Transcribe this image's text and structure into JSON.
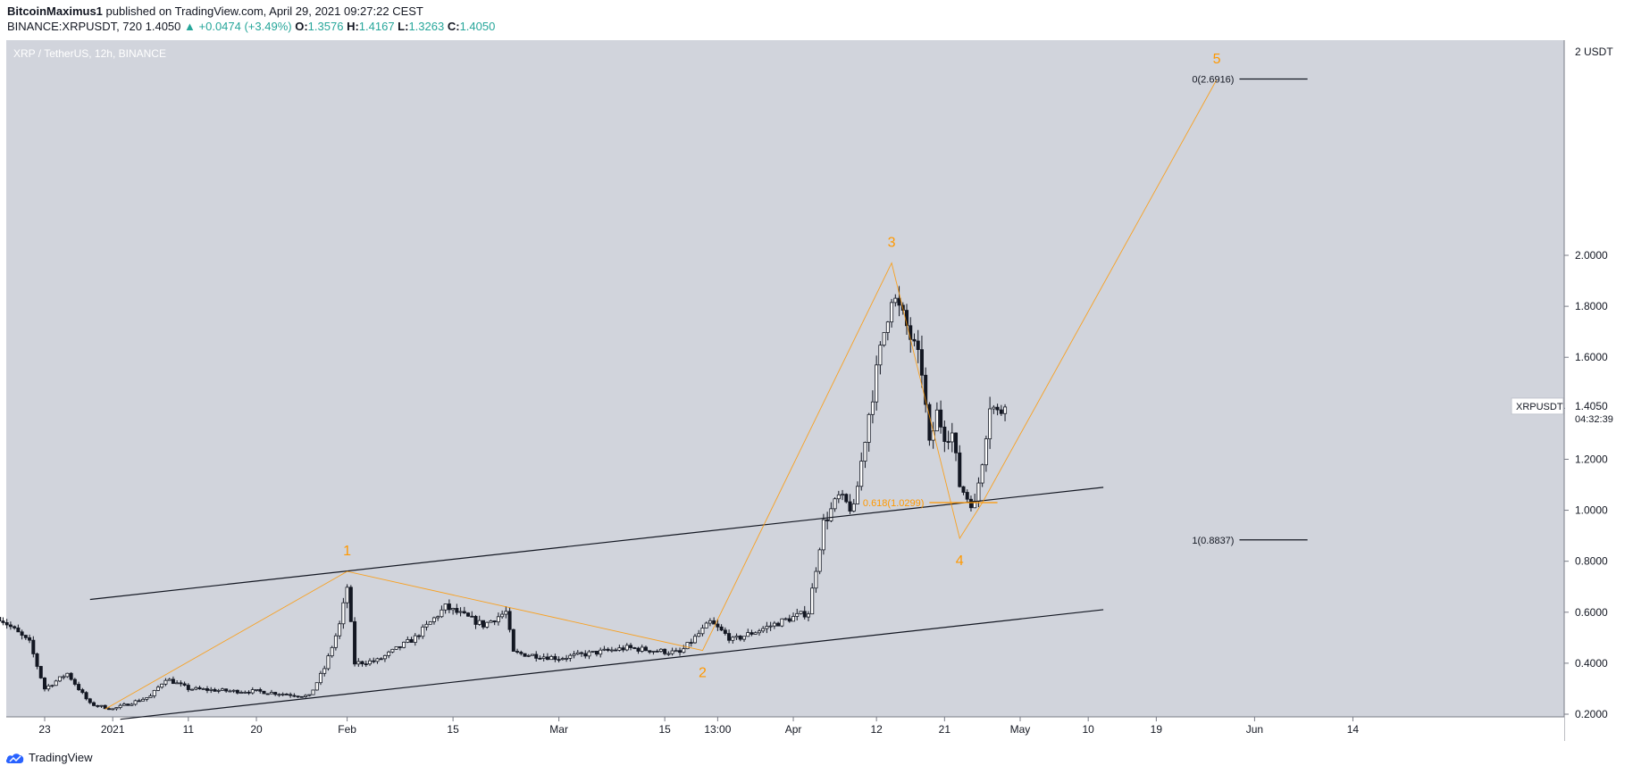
{
  "header": {
    "author": "BitcoinMaximus1",
    "published": "published on TradingView.com, April 29, 2021 09:27:22 CEST",
    "symbol": "BINANCE:XRPUSDT, 720",
    "last": "1.4050",
    "change": "+0.0474 (+3.49%)",
    "o_label": "O:",
    "o": "1.3576",
    "h_label": "H:",
    "h": "1.4167",
    "l_label": "L:",
    "l": "1.3263",
    "c_label": "C:",
    "c": "1.4050"
  },
  "footer": {
    "brand": "TradingView"
  },
  "colors": {
    "background": "#d1d4dc",
    "wave": "#ff9800",
    "channel": "#131722",
    "candle": "#131722",
    "positive": "#26a69a"
  },
  "chart_data": {
    "type": "candlestick",
    "title": "XRP / TetherUS, 12h, BINANCE",
    "unit": "USDT",
    "ylim": [
      0.2,
      2.0
    ],
    "y_ticks": [
      2.0,
      1.8,
      1.6,
      1.4,
      1.2,
      1.0,
      0.8,
      0.6,
      0.4,
      0.2
    ],
    "y_tick_labels": [
      "2.0000",
      "1.8000",
      "1.6000",
      "1.4000",
      "1.2000",
      "1.0000",
      "0.8000",
      "0.6000",
      "0.4000",
      "0.2000"
    ],
    "y_top_label": "2 USDT",
    "x_ticks": [
      "23",
      "2021",
      "11",
      "20",
      "Feb",
      "15",
      "Mar",
      "15",
      "13:00",
      "Apr",
      "12",
      "21",
      "May",
      "10",
      "19",
      "Jun",
      "14"
    ],
    "x_tick_dates": [
      "2020-12-23",
      "2021-01-01",
      "2021-01-11",
      "2021-01-20",
      "2021-02-01",
      "2021-02-15",
      "2021-03-01",
      "2021-03-15",
      "2021-03-22",
      "2021-04-01",
      "2021-04-12",
      "2021-04-21",
      "2021-05-01",
      "2021-05-10",
      "2021-05-19",
      "2021-06-01",
      "2021-06-14"
    ],
    "price_label": {
      "symbol": "XRPUSDT",
      "price": "1.4050",
      "countdown": "04:32:39"
    },
    "wave_labels": [
      {
        "label": "1",
        "date": "2021-02-01",
        "price": 0.76
      },
      {
        "label": "2",
        "date": "2021-03-20",
        "price": 0.45
      },
      {
        "label": "3",
        "date": "2021-04-14",
        "price": 1.97
      },
      {
        "label": "4",
        "date": "2021-04-23",
        "price": 0.89
      },
      {
        "label": "5",
        "date": "2021-05-27",
        "price": 2.69
      }
    ],
    "wave_path": [
      {
        "date": "2020-12-31",
        "price": 0.22
      },
      {
        "date": "2021-02-01",
        "price": 0.76
      },
      {
        "date": "2021-03-20",
        "price": 0.45
      },
      {
        "date": "2021-04-14",
        "price": 1.97
      },
      {
        "date": "2021-04-23",
        "price": 0.89
      },
      {
        "date": "2021-04-26",
        "price": 1.03
      },
      {
        "date": "2021-05-27",
        "price": 2.69
      }
    ],
    "channel_upper": [
      {
        "date": "2020-12-29",
        "price": 0.65
      },
      {
        "date": "2021-05-12",
        "price": 1.09
      }
    ],
    "channel_lower": [
      {
        "date": "2021-01-02",
        "price": 0.18
      },
      {
        "date": "2021-05-12",
        "price": 0.61
      }
    ],
    "fib_levels": [
      {
        "label": "0(2.6916)",
        "value": 2.6916,
        "from": "2021-05-30",
        "to": "2021-06-08"
      },
      {
        "label": "1(0.8837)",
        "value": 0.8837,
        "from": "2021-05-30",
        "to": "2021-06-08"
      },
      {
        "label": "0.618(1.0299)",
        "value": 1.0299,
        "from": "2021-04-19",
        "to": "2021-04-28"
      }
    ],
    "key_points": [
      {
        "date": "2020-12-17",
        "price": 0.58
      },
      {
        "date": "2020-12-21",
        "price": 0.48
      },
      {
        "date": "2020-12-23",
        "price": 0.3
      },
      {
        "date": "2020-12-26",
        "price": 0.36
      },
      {
        "date": "2020-12-29",
        "price": 0.24
      },
      {
        "date": "2021-01-01",
        "price": 0.22
      },
      {
        "date": "2021-01-06",
        "price": 0.27
      },
      {
        "date": "2021-01-08",
        "price": 0.34
      },
      {
        "date": "2021-01-11",
        "price": 0.3
      },
      {
        "date": "2021-01-17",
        "price": 0.29
      },
      {
        "date": "2021-01-20",
        "price": 0.29
      },
      {
        "date": "2021-01-27",
        "price": 0.27
      },
      {
        "date": "2021-01-29",
        "price": 0.38
      },
      {
        "date": "2021-01-31",
        "price": 0.55
      },
      {
        "date": "2021-02-01",
        "price": 0.7
      },
      {
        "date": "2021-02-02",
        "price": 0.4
      },
      {
        "date": "2021-02-05",
        "price": 0.41
      },
      {
        "date": "2021-02-10",
        "price": 0.5
      },
      {
        "date": "2021-02-14",
        "price": 0.62
      },
      {
        "date": "2021-02-19",
        "price": 0.55
      },
      {
        "date": "2021-02-22",
        "price": 0.6
      },
      {
        "date": "2021-02-23",
        "price": 0.44
      },
      {
        "date": "2021-03-01",
        "price": 0.42
      },
      {
        "date": "2021-03-10",
        "price": 0.46
      },
      {
        "date": "2021-03-17",
        "price": 0.44
      },
      {
        "date": "2021-03-21",
        "price": 0.56
      },
      {
        "date": "2021-03-24",
        "price": 0.49
      },
      {
        "date": "2021-03-31",
        "price": 0.57
      },
      {
        "date": "2021-04-03",
        "price": 0.6
      },
      {
        "date": "2021-04-05",
        "price": 0.95
      },
      {
        "date": "2021-04-07",
        "price": 1.05
      },
      {
        "date": "2021-04-09",
        "price": 1.0
      },
      {
        "date": "2021-04-11",
        "price": 1.38
      },
      {
        "date": "2021-04-13",
        "price": 1.7
      },
      {
        "date": "2021-04-14",
        "price": 1.85
      },
      {
        "date": "2021-04-16",
        "price": 1.72
      },
      {
        "date": "2021-04-18",
        "price": 1.55
      },
      {
        "date": "2021-04-19",
        "price": 1.25
      },
      {
        "date": "2021-04-20",
        "price": 1.38
      },
      {
        "date": "2021-04-21",
        "price": 1.3
      },
      {
        "date": "2021-04-22",
        "price": 1.3
      },
      {
        "date": "2021-04-23",
        "price": 1.1
      },
      {
        "date": "2021-04-24",
        "price": 1.05
      },
      {
        "date": "2021-04-25",
        "price": 1.02
      },
      {
        "date": "2021-04-26",
        "price": 1.2
      },
      {
        "date": "2021-04-27",
        "price": 1.42
      },
      {
        "date": "2021-04-28",
        "price": 1.38
      },
      {
        "date": "2021-04-29",
        "price": 1.405
      }
    ]
  }
}
